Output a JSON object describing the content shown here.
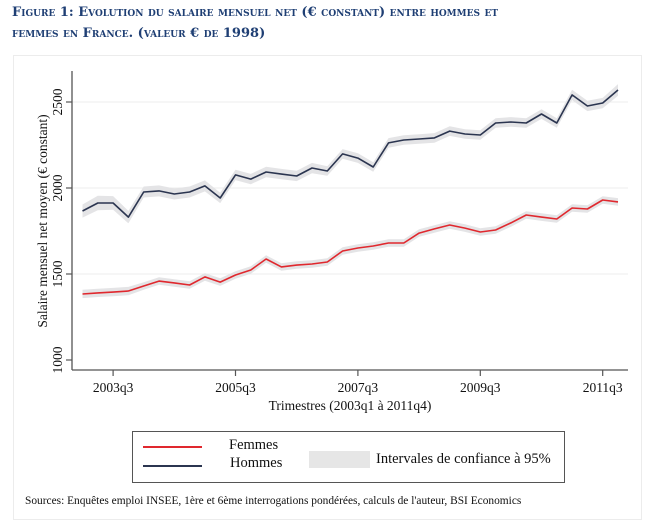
{
  "figure": {
    "title_line1": "Figure 1: Evolution du salaire mensuel net (€ constant) entre hommes et",
    "title_line2": "femmes en France. (valeur € de 1998)",
    "source": "Sources: Enquêtes emploi INSEE, 1ère et 6ème interrogations pondérées, calculs de l'auteur, BSI Economics"
  },
  "legend": {
    "femmes": "Femmes",
    "hommes": "Hommes",
    "ci": "Intervales de confiance à 95%"
  },
  "colors": {
    "femmes": "#e0282e",
    "hommes": "#2b3550",
    "ci_band": "#e4e4e6",
    "title": "#1f3f74"
  },
  "chart_data": {
    "type": "line",
    "title": "Figure 1: Evolution du salaire mensuel net (€ constant) entre hommes et femmes en France. (valeur € de 1998)",
    "xlabel": "Trimestres (2003q1 à 2011q4)",
    "ylabel": "Salaire mensuel net moyen (€ constant)",
    "ylim": [
      1000,
      2650
    ],
    "yticks": [
      1000,
      1500,
      2000,
      2500
    ],
    "ytick_labels": [
      "1000",
      "1500",
      "2000",
      "2500"
    ],
    "xtick_labels": [
      "2003q3",
      "2005q3",
      "2007q3",
      "2009q3",
      "2011q3"
    ],
    "xtick_indices": [
      2,
      10,
      18,
      26,
      34
    ],
    "grid": true,
    "legend_position": "bottom",
    "x": [
      "2003q1",
      "2003q2",
      "2003q3",
      "2003q4",
      "2004q1",
      "2004q2",
      "2004q3",
      "2004q4",
      "2005q1",
      "2005q2",
      "2005q3",
      "2005q4",
      "2006q1",
      "2006q2",
      "2006q3",
      "2006q4",
      "2007q1",
      "2007q2",
      "2007q3",
      "2007q4",
      "2008q1",
      "2008q2",
      "2008q3",
      "2008q4",
      "2009q1",
      "2009q2",
      "2009q3",
      "2009q4",
      "2010q1",
      "2010q2",
      "2010q3",
      "2010q4",
      "2011q1",
      "2011q2",
      "2011q3",
      "2011q4"
    ],
    "series": [
      {
        "name": "Femmes",
        "values": [
          1384,
          1390,
          1395,
          1401,
          1430,
          1459,
          1448,
          1436,
          1483,
          1453,
          1494,
          1523,
          1587,
          1541,
          1552,
          1558,
          1570,
          1634,
          1651,
          1663,
          1680,
          1680,
          1738,
          1762,
          1785,
          1767,
          1744,
          1756,
          1797,
          1843,
          1831,
          1820,
          1884,
          1878,
          1930,
          1919
        ],
        "ci_halfwidth": [
          24,
          24,
          24,
          24,
          22,
          22,
          22,
          22,
          22,
          22,
          22,
          22,
          22,
          22,
          22,
          22,
          22,
          22,
          22,
          22,
          22,
          22,
          22,
          22,
          22,
          22,
          22,
          22,
          22,
          22,
          22,
          22,
          22,
          22,
          22,
          22
        ]
      },
      {
        "name": "Hommes",
        "values": [
          1866,
          1913,
          1913,
          1831,
          1977,
          1983,
          1965,
          1977,
          2012,
          1942,
          2076,
          2052,
          2093,
          2081,
          2070,
          2116,
          2099,
          2198,
          2174,
          2122,
          2262,
          2279,
          2285,
          2291,
          2331,
          2314,
          2308,
          2378,
          2384,
          2378,
          2430,
          2378,
          2541,
          2477,
          2494,
          2570
        ],
        "ci_halfwidth": [
          38,
          42,
          40,
          36,
          32,
          32,
          32,
          32,
          32,
          30,
          30,
          30,
          30,
          30,
          30,
          30,
          28,
          28,
          28,
          28,
          28,
          28,
          28,
          28,
          28,
          28,
          28,
          28,
          28,
          28,
          28,
          28,
          30,
          30,
          30,
          34
        ]
      }
    ]
  }
}
